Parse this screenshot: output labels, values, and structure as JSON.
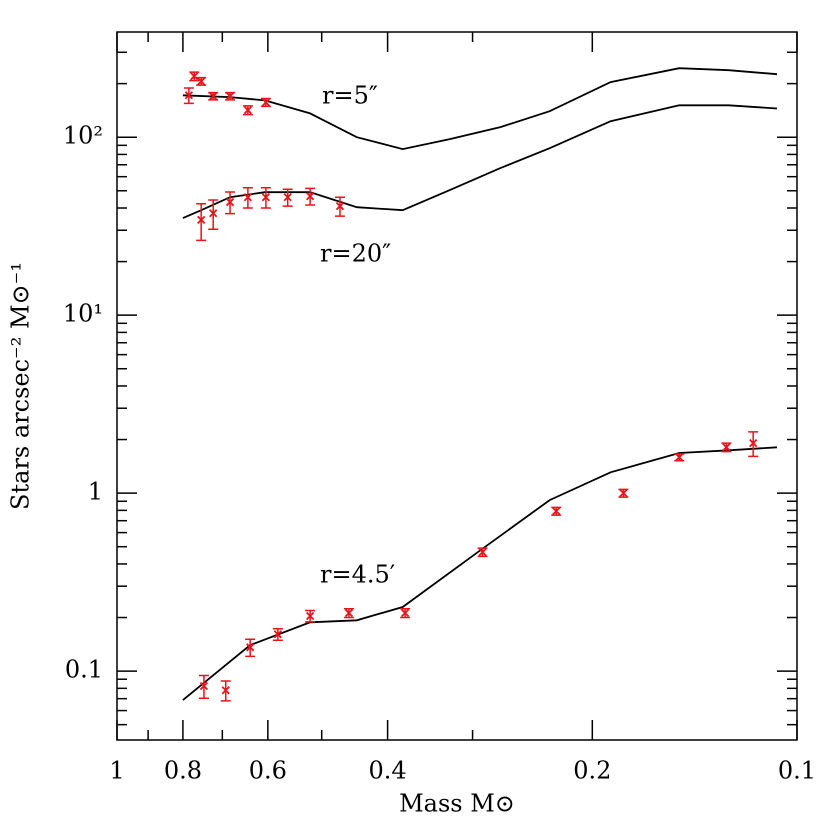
{
  "chart_data": {
    "type": "line",
    "x_label": "Mass M⊙",
    "y_label": "Stars arcsec⁻² M⊙⁻¹",
    "xlog": true,
    "ylog": true,
    "xlim": [
      1,
      0.1
    ],
    "ylim": [
      0.041,
      390
    ],
    "xticks": [
      1,
      0.8,
      0.6,
      0.4,
      0.2,
      0.1
    ],
    "xminor_ticks": [
      0.9,
      0.7,
      0.5,
      0.3
    ],
    "yticks": [
      {
        "value": 100,
        "label": "10²"
      },
      {
        "value": 10,
        "label": "10¹"
      },
      1,
      0.1
    ],
    "yminor_ticks": [
      0.05,
      0.06,
      0.07,
      0.08,
      0.09,
      0.2,
      0.3,
      0.4,
      0.5,
      0.6,
      0.7,
      0.8,
      0.9,
      2,
      3,
      4,
      5,
      6,
      7,
      8,
      9,
      20,
      30,
      40,
      50,
      60,
      70,
      80,
      90,
      200,
      300
    ],
    "series": [
      {
        "name": "r=5″",
        "color": "#000000",
        "x": [
          0.8,
          0.682,
          0.606,
          0.52,
          0.444,
          0.38,
          0.324,
          0.273,
          0.231,
          0.188,
          0.149,
          0.126,
          0.107
        ],
        "values": [
          172,
          168,
          161,
          136,
          100,
          85.7,
          97.5,
          114,
          140,
          204,
          244,
          238,
          226
        ],
        "points": {
          "color": "#e8141c",
          "x": [
            0.784,
            0.77,
            0.752,
            0.722,
            0.682,
            0.642,
            0.604
          ],
          "values": [
            172,
            220,
            206,
            170,
            170,
            142,
            157
          ],
          "errors": [
            17,
            12,
            10,
            8,
            8,
            8,
            8
          ]
        }
      },
      {
        "name": "r=20″",
        "color": "#000000",
        "x": [
          0.8,
          0.752,
          0.682,
          0.606,
          0.52,
          0.444,
          0.38,
          0.324,
          0.273,
          0.231,
          0.188,
          0.149,
          0.126,
          0.107
        ],
        "values": [
          35.1,
          38.9,
          46.0,
          49.1,
          49.1,
          40.4,
          38.9,
          50.4,
          67,
          86.7,
          123,
          151,
          151,
          145
        ],
        "points": {
          "color": "#e8141c",
          "x": [
            0.752,
            0.722,
            0.682,
            0.642,
            0.604,
            0.561,
            0.52,
            0.47
          ],
          "values": [
            34.3,
            37.4,
            43.2,
            46.0,
            46.0,
            46.0,
            46.6,
            41
          ],
          "errors": [
            8,
            7,
            6,
            6,
            6,
            5,
            5,
            5
          ]
        }
      },
      {
        "name": "r=4.5′",
        "color": "#000000",
        "x": [
          0.8,
          0.637,
          0.52,
          0.444,
          0.38,
          0.292,
          0.231,
          0.188,
          0.149,
          0.126,
          0.107
        ],
        "values": [
          0.0687,
          0.14,
          0.188,
          0.193,
          0.229,
          0.478,
          0.914,
          1.31,
          1.68,
          1.74,
          1.81
        ],
        "points": {
          "color": "#e8141c",
          "x": [
            0.745,
            0.692,
            0.637,
            0.58,
            0.52,
            0.456,
            0.377,
            0.29,
            0.226,
            0.18,
            0.149,
            0.127,
            0.116
          ],
          "values": [
            0.0824,
            0.078,
            0.136,
            0.161,
            0.204,
            0.212,
            0.212,
            0.466,
            0.792,
            1.0,
            1.59,
            1.81,
            1.91
          ],
          "errors": [
            0.012,
            0.01,
            0.015,
            0.012,
            0.015,
            0.012,
            0.012,
            0.025,
            0.04,
            0.05,
            0.07,
            0.1,
            0.3
          ]
        }
      }
    ]
  }
}
